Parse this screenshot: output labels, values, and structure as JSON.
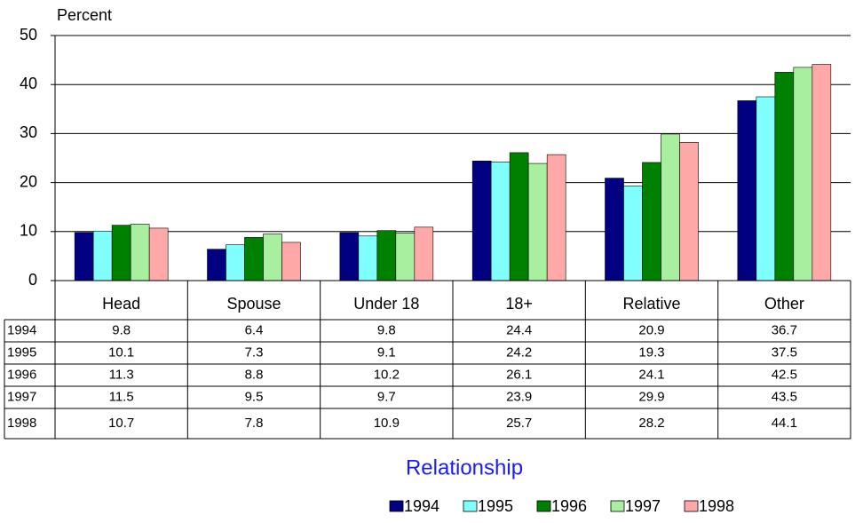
{
  "chart_data": {
    "type": "bar",
    "y_label": "Percent",
    "x_label": "Relationship",
    "categories": [
      "Head",
      "Spouse",
      "Under 18",
      "18+",
      "Relative",
      "Other"
    ],
    "series": [
      {
        "name": "1994",
        "color": "#000080",
        "values": [
          9.8,
          6.4,
          9.8,
          24.4,
          20.9,
          36.7
        ]
      },
      {
        "name": "1995",
        "color": "#80ffff",
        "values": [
          10.1,
          7.3,
          9.1,
          24.2,
          19.3,
          37.5
        ]
      },
      {
        "name": "1996",
        "color": "#008000",
        "values": [
          11.3,
          8.8,
          10.2,
          26.1,
          24.1,
          42.5
        ]
      },
      {
        "name": "1997",
        "color": "#a8f0a0",
        "values": [
          11.5,
          9.5,
          9.7,
          23.9,
          29.9,
          43.5
        ]
      },
      {
        "name": "1998",
        "color": "#ffa8a8",
        "values": [
          10.7,
          7.8,
          10.9,
          25.7,
          28.2,
          44.1
        ]
      }
    ],
    "ylim": [
      0,
      50
    ],
    "yticks": [
      0,
      10,
      20,
      30,
      40,
      50
    ],
    "grid": true
  }
}
